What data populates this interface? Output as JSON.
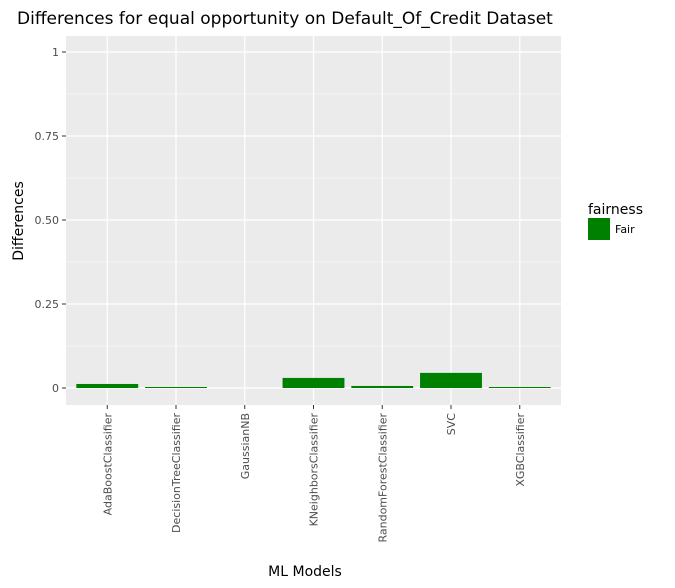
{
  "chart_data": {
    "type": "bar",
    "title": "Differences for equal opportunity on Default_Of_Credit Dataset",
    "xlabel": "ML Models",
    "ylabel": "Differences",
    "categories": [
      "AdaBoostClassifier",
      "DecisionTreeClassifier",
      "GaussianNB",
      "KNeighborsClassifier",
      "RandomForestClassifier",
      "SVC",
      "XGBClassifier"
    ],
    "values": [
      0.012,
      0.003,
      0.0,
      0.03,
      0.006,
      0.045,
      0.003
    ],
    "ylim": [
      0,
      1
    ],
    "yticks": [
      0,
      0.25,
      0.5,
      0.75,
      1
    ],
    "ytick_labels": [
      "0",
      "0.25",
      "0.50",
      "0.75",
      "1"
    ],
    "grid": true,
    "bar_color": "#008000",
    "panel_background": "#ebebeb",
    "legend": {
      "title": "fairness",
      "placement": "right",
      "entries": [
        {
          "label": "Fair",
          "color": "#008000"
        }
      ]
    }
  }
}
